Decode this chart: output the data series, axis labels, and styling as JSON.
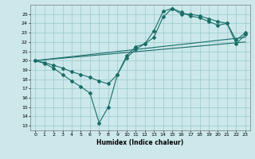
{
  "bg_color": "#cce8ea",
  "grid_color": "#a0cdd0",
  "line_color": "#1a6e6a",
  "xlabel": "Humidex (Indice chaleur)",
  "xlim": [
    -0.5,
    23.5
  ],
  "ylim": [
    12.5,
    26.0
  ],
  "yticks": [
    13,
    14,
    15,
    16,
    17,
    18,
    19,
    20,
    21,
    22,
    23,
    24,
    25
  ],
  "xticks": [
    0,
    1,
    2,
    3,
    4,
    5,
    6,
    7,
    8,
    9,
    10,
    11,
    12,
    13,
    14,
    15,
    16,
    17,
    18,
    19,
    20,
    21,
    22,
    23
  ],
  "line1_x": [
    0,
    1,
    2,
    3,
    4,
    5,
    6,
    7,
    8,
    9,
    10,
    11,
    12,
    13,
    14,
    15,
    16,
    17,
    18,
    19,
    20,
    21,
    22,
    23
  ],
  "line1_y": [
    20.0,
    19.7,
    19.2,
    18.5,
    17.8,
    17.2,
    16.5,
    13.3,
    15.0,
    18.5,
    20.5,
    21.5,
    21.8,
    23.2,
    25.3,
    25.6,
    25.0,
    25.0,
    24.8,
    24.5,
    24.2,
    24.0,
    21.8,
    22.8
  ],
  "line2_x": [
    0,
    1,
    2,
    3,
    4,
    5,
    6,
    7,
    8,
    9,
    10,
    11,
    12,
    13,
    14,
    15,
    16,
    17,
    18,
    19,
    20,
    21,
    22,
    23
  ],
  "line2_y": [
    20.0,
    19.8,
    19.5,
    19.2,
    18.8,
    18.5,
    18.2,
    17.8,
    17.5,
    18.5,
    20.3,
    21.2,
    21.8,
    22.5,
    24.7,
    25.6,
    25.2,
    24.8,
    24.6,
    24.2,
    23.8,
    24.0,
    22.2,
    23.0
  ],
  "line3_x": [
    0,
    23
  ],
  "line3_y": [
    20.0,
    22.0
  ],
  "line4_x": [
    0,
    23
  ],
  "line4_y": [
    20.0,
    22.5
  ]
}
